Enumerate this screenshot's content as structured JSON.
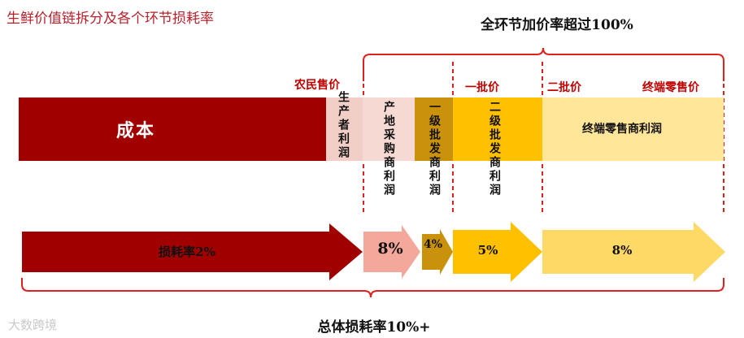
{
  "title": "生鲜价值链拆分及各个环节损耗率",
  "top_label": "全环节加价率超过100%",
  "price_labels": {
    "farmer_price": "农民售价",
    "first_wholesale": "一批价",
    "second_wholesale": "二批价",
    "retail_price": "终端零售价"
  },
  "segments": {
    "cost": "成本",
    "producer_profit": "生产者利润",
    "origin_purchase_profit": "产地采购商利润",
    "first_wholesale_profit": "一级批发商利润",
    "second_wholesale_profit": "二级批发商利润",
    "retail_profit": "终端零售商利润"
  },
  "loss_rates": {
    "base": "损耗率2%",
    "origin": "8%",
    "first": "4%",
    "second": "5%",
    "retail": "8%"
  },
  "bottom_label": "总体损耗率10%+",
  "watermark": "大数跨境",
  "colors": {
    "cost": "#a00000",
    "producer": "#f2cfc6",
    "origin": "#f4a79b",
    "first": "#c9920a",
    "second": "#ffc000",
    "retail": "#ffd966",
    "bracket": "#e0201c"
  }
}
